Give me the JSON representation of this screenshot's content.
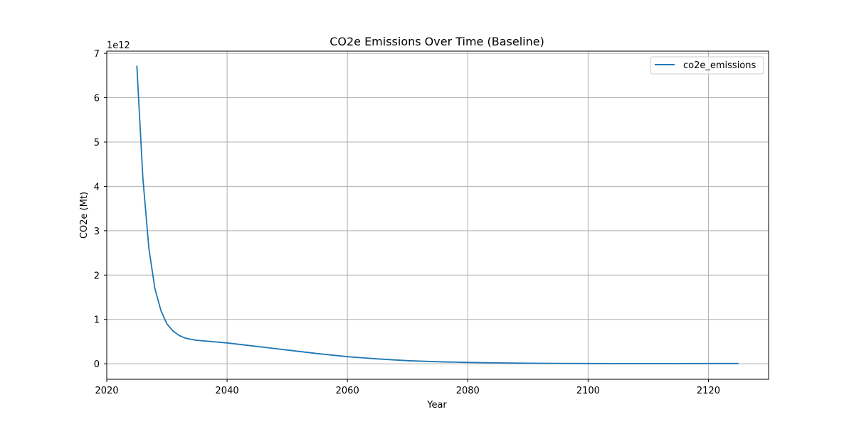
{
  "chart_data": {
    "type": "line",
    "title": "CO2e Emissions Over Time (Baseline)",
    "xlabel": "Year",
    "ylabel": "CO2e (Mt)",
    "y_offset_label": "1e12",
    "y_scale_multiplier": 1000000000000.0,
    "xlim": [
      2020,
      2130
    ],
    "ylim": [
      -0.35,
      7.05
    ],
    "x_ticks": [
      2020,
      2040,
      2060,
      2080,
      2100,
      2120
    ],
    "y_ticks": [
      0,
      1,
      2,
      3,
      4,
      5,
      6,
      7
    ],
    "x_tick_labels": [
      "2020",
      "2040",
      "2060",
      "2080",
      "2100",
      "2120"
    ],
    "y_tick_labels": [
      "0",
      "1",
      "2",
      "3",
      "4",
      "5",
      "6",
      "7"
    ],
    "grid": true,
    "legend_position": "top-right",
    "series": [
      {
        "name": "co2e_emissions",
        "color": "#1f77b4",
        "x": [
          2025,
          2026,
          2027,
          2028,
          2029,
          2030,
          2031,
          2032,
          2033,
          2034,
          2035,
          2040,
          2045,
          2050,
          2055,
          2060,
          2065,
          2070,
          2075,
          2080,
          2085,
          2090,
          2095,
          2100,
          2110,
          2120,
          2125
        ],
        "y": [
          6.72,
          4.2,
          2.6,
          1.7,
          1.2,
          0.9,
          0.74,
          0.64,
          0.58,
          0.55,
          0.53,
          0.47,
          0.39,
          0.31,
          0.23,
          0.16,
          0.11,
          0.07,
          0.045,
          0.03,
          0.02,
          0.012,
          0.008,
          0.005,
          0.004,
          0.005,
          0.006
        ]
      }
    ]
  }
}
